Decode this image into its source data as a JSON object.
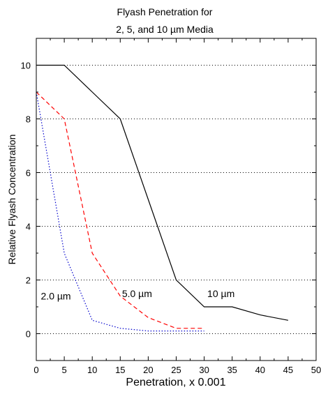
{
  "chart_data": {
    "type": "line",
    "title_lines": [
      "Flyash Penetration for",
      "2, 5, and 10 µm Media"
    ],
    "xlabel": "Penetration, x 0.001",
    "ylabel": "Relative Flyash Concentration",
    "xlim": [
      0,
      50
    ],
    "ylim": [
      -1,
      11
    ],
    "x_ticks": [
      0,
      5,
      10,
      15,
      20,
      25,
      30,
      35,
      40,
      45,
      50
    ],
    "y_ticks": [
      0,
      2,
      4,
      6,
      8,
      10
    ],
    "grid": "horizontal dotted at y ticks",
    "legend": "none",
    "series": [
      {
        "name": "10 µm",
        "color": "#000000",
        "dash": "solid",
        "x": [
          0,
          5,
          10,
          15,
          20,
          25,
          30,
          35,
          40,
          45
        ],
        "y": [
          10,
          10,
          9,
          8,
          5,
          2,
          1,
          1,
          0.7,
          0.5
        ]
      },
      {
        "name": "5.0 µm",
        "color": "#ff0000",
        "dash": "dashed",
        "x": [
          0,
          5,
          10,
          15,
          20,
          25,
          30
        ],
        "y": [
          9,
          8,
          3,
          1.4,
          0.6,
          0.2,
          0.2
        ]
      },
      {
        "name": "2.0 µm",
        "color": "#0000cc",
        "dash": "dotted",
        "x": [
          0,
          5,
          10,
          15,
          20,
          25,
          30
        ],
        "y": [
          9,
          3,
          0.5,
          0.2,
          0.1,
          0.1,
          0.1
        ]
      }
    ],
    "annotations": [
      {
        "text": "2.0 µm",
        "x": 3.5,
        "y": 1.4
      },
      {
        "text": "5.0 µm",
        "x": 18,
        "y": 1.5
      },
      {
        "text": "10 µm",
        "x": 33,
        "y": 1.5
      }
    ]
  }
}
